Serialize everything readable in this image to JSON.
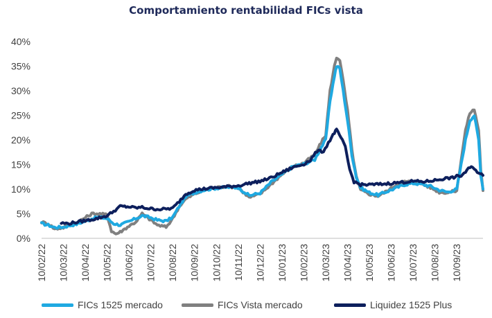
{
  "chart_data": {
    "type": "line",
    "title": "Comportamiento rentabilidad FICs vista",
    "xlabel": "",
    "ylabel": "",
    "x_ticks": [
      "10/02/22",
      "10/03/22",
      "10/04/22",
      "10/05/22",
      "10/06/22",
      "10/07/22",
      "10/08/22",
      "10/09/22",
      "10/10/22",
      "10/11/22",
      "10/12/22",
      "10/01/23",
      "10/02/23",
      "10/03/23",
      "10/04/23",
      "10/05/23",
      "10/06/23",
      "10/07/23",
      "10/08/23",
      "10/09/23"
    ],
    "y_ticks": [
      "0%",
      "5%",
      "10%",
      "15%",
      "20%",
      "25%",
      "30%",
      "35%",
      "40%"
    ],
    "ylim": [
      0,
      40
    ],
    "xlim": [
      0,
      20.2
    ],
    "y_unit": "%",
    "grid": false,
    "legend_position": "bottom",
    "series": [
      {
        "name": "FICs 1525 mercado",
        "color": "#1fa9e1",
        "points": [
          [
            0,
            3
          ],
          [
            0.3,
            2.7
          ],
          [
            0.6,
            2.2
          ],
          [
            1,
            2.3
          ],
          [
            1.3,
            2.6
          ],
          [
            1.6,
            2.9
          ],
          [
            2,
            3.5
          ],
          [
            2.3,
            4
          ],
          [
            2.6,
            4.3
          ],
          [
            3,
            4
          ],
          [
            3.3,
            3
          ],
          [
            3.6,
            2.7
          ],
          [
            4,
            3.4
          ],
          [
            4.3,
            4
          ],
          [
            4.6,
            4.6
          ],
          [
            5,
            4.2
          ],
          [
            5.3,
            3.7
          ],
          [
            5.7,
            3.5
          ],
          [
            6,
            4.3
          ],
          [
            6.3,
            6.5
          ],
          [
            6.6,
            8.5
          ],
          [
            7,
            9.3
          ],
          [
            7.5,
            9.9
          ],
          [
            8,
            10.2
          ],
          [
            8.5,
            10.4
          ],
          [
            9,
            10.3
          ],
          [
            9.5,
            8.7
          ],
          [
            10,
            9.2
          ],
          [
            10.5,
            11.4
          ],
          [
            11,
            13
          ],
          [
            11.5,
            14.6
          ],
          [
            12,
            15.1
          ],
          [
            12.5,
            16
          ],
          [
            12.8,
            18.5
          ],
          [
            13,
            20
          ],
          [
            13.2,
            28
          ],
          [
            13.4,
            33
          ],
          [
            13.5,
            35
          ],
          [
            13.65,
            34.5
          ],
          [
            13.8,
            30
          ],
          [
            14,
            24
          ],
          [
            14.2,
            17
          ],
          [
            14.4,
            12.5
          ],
          [
            14.6,
            10.3
          ],
          [
            15,
            9.3
          ],
          [
            15.4,
            8.8
          ],
          [
            15.8,
            9.5
          ],
          [
            16.2,
            10.2
          ],
          [
            16.6,
            10.9
          ],
          [
            17,
            11.2
          ],
          [
            17.4,
            11
          ],
          [
            17.8,
            10.6
          ],
          [
            18.2,
            9.8
          ],
          [
            18.6,
            9.4
          ],
          [
            19,
            10
          ],
          [
            19.2,
            15
          ],
          [
            19.4,
            20
          ],
          [
            19.6,
            24
          ],
          [
            19.8,
            25
          ],
          [
            20,
            20
          ],
          [
            20.1,
            13
          ],
          [
            20.2,
            10
          ]
        ]
      },
      {
        "name": "FICs Vista mercado",
        "color": "#808080",
        "points": [
          [
            0,
            3.3
          ],
          [
            0.3,
            3
          ],
          [
            0.6,
            1.9
          ],
          [
            1,
            2.2
          ],
          [
            1.3,
            2.8
          ],
          [
            1.6,
            3.2
          ],
          [
            2,
            4.2
          ],
          [
            2.3,
            5
          ],
          [
            2.6,
            5
          ],
          [
            3,
            4.8
          ],
          [
            3.2,
            1.5
          ],
          [
            3.4,
            0.9
          ],
          [
            3.6,
            1.3
          ],
          [
            4,
            2.5
          ],
          [
            4.3,
            3.3
          ],
          [
            4.6,
            5
          ],
          [
            5,
            3.7
          ],
          [
            5.3,
            2.7
          ],
          [
            5.7,
            2.3
          ],
          [
            6,
            4
          ],
          [
            6.3,
            6.5
          ],
          [
            6.6,
            8
          ],
          [
            7,
            9
          ],
          [
            7.5,
            9.9
          ],
          [
            8,
            10.3
          ],
          [
            8.5,
            10.6
          ],
          [
            9,
            10.3
          ],
          [
            9.5,
            8.3
          ],
          [
            10,
            9
          ],
          [
            10.5,
            11
          ],
          [
            11,
            13
          ],
          [
            11.5,
            14.6
          ],
          [
            12,
            15.3
          ],
          [
            12.5,
            17
          ],
          [
            12.8,
            19.5
          ],
          [
            13,
            21
          ],
          [
            13.2,
            30
          ],
          [
            13.4,
            35
          ],
          [
            13.5,
            36.8
          ],
          [
            13.65,
            36.3
          ],
          [
            13.8,
            32
          ],
          [
            14,
            26
          ],
          [
            14.2,
            18
          ],
          [
            14.4,
            12.5
          ],
          [
            14.6,
            9.8
          ],
          [
            15,
            9
          ],
          [
            15.4,
            8.6
          ],
          [
            15.8,
            9.6
          ],
          [
            16.2,
            10.8
          ],
          [
            16.6,
            11.5
          ],
          [
            17,
            11.6
          ],
          [
            17.4,
            11.1
          ],
          [
            17.8,
            10.3
          ],
          [
            18.2,
            9.4
          ],
          [
            18.6,
            9.3
          ],
          [
            19,
            9.7
          ],
          [
            19.2,
            16
          ],
          [
            19.4,
            22
          ],
          [
            19.6,
            25.5
          ],
          [
            19.8,
            26.2
          ],
          [
            20,
            22
          ],
          [
            20.1,
            14
          ],
          [
            20.2,
            9.7
          ]
        ]
      },
      {
        "name": "Liquidez 1525 Plus",
        "color": "#0d1f5c",
        "points": [
          [
            0.9,
            3.1
          ],
          [
            1.2,
            3
          ],
          [
            1.5,
            3.2
          ],
          [
            2,
            3.6
          ],
          [
            2.5,
            4
          ],
          [
            3,
            4.6
          ],
          [
            3.3,
            5.5
          ],
          [
            3.6,
            6.5
          ],
          [
            4,
            6.4
          ],
          [
            4.3,
            6.2
          ],
          [
            4.6,
            6.3
          ],
          [
            5,
            6
          ],
          [
            5.5,
            5.9
          ],
          [
            6,
            6.1
          ],
          [
            6.3,
            7.5
          ],
          [
            6.6,
            9
          ],
          [
            7,
            9.8
          ],
          [
            7.5,
            10.1
          ],
          [
            8,
            10.3
          ],
          [
            8.5,
            10.5
          ],
          [
            9,
            10.7
          ],
          [
            9.5,
            11.2
          ],
          [
            10,
            11.6
          ],
          [
            10.5,
            12.3
          ],
          [
            11,
            13.4
          ],
          [
            11.5,
            14.4
          ],
          [
            12,
            15.1
          ],
          [
            12.3,
            15.9
          ],
          [
            12.6,
            17.7
          ],
          [
            12.9,
            17.7
          ],
          [
            13.2,
            20
          ],
          [
            13.4,
            21.5
          ],
          [
            13.5,
            22
          ],
          [
            13.7,
            20.5
          ],
          [
            13.9,
            18.5
          ],
          [
            14.1,
            14
          ],
          [
            14.3,
            11.5
          ],
          [
            14.6,
            10.9
          ],
          [
            15,
            10.9
          ],
          [
            15.5,
            11
          ],
          [
            16,
            11.2
          ],
          [
            16.5,
            11.4
          ],
          [
            17,
            11.6
          ],
          [
            17.5,
            11.5
          ],
          [
            18,
            11.8
          ],
          [
            18.5,
            12.2
          ],
          [
            18.8,
            12.3
          ],
          [
            19,
            12.6
          ],
          [
            19.2,
            12.7
          ],
          [
            19.4,
            13.5
          ],
          [
            19.6,
            14.4
          ],
          [
            19.8,
            14.3
          ],
          [
            20,
            13.2
          ],
          [
            20.2,
            12.8
          ]
        ]
      }
    ]
  }
}
